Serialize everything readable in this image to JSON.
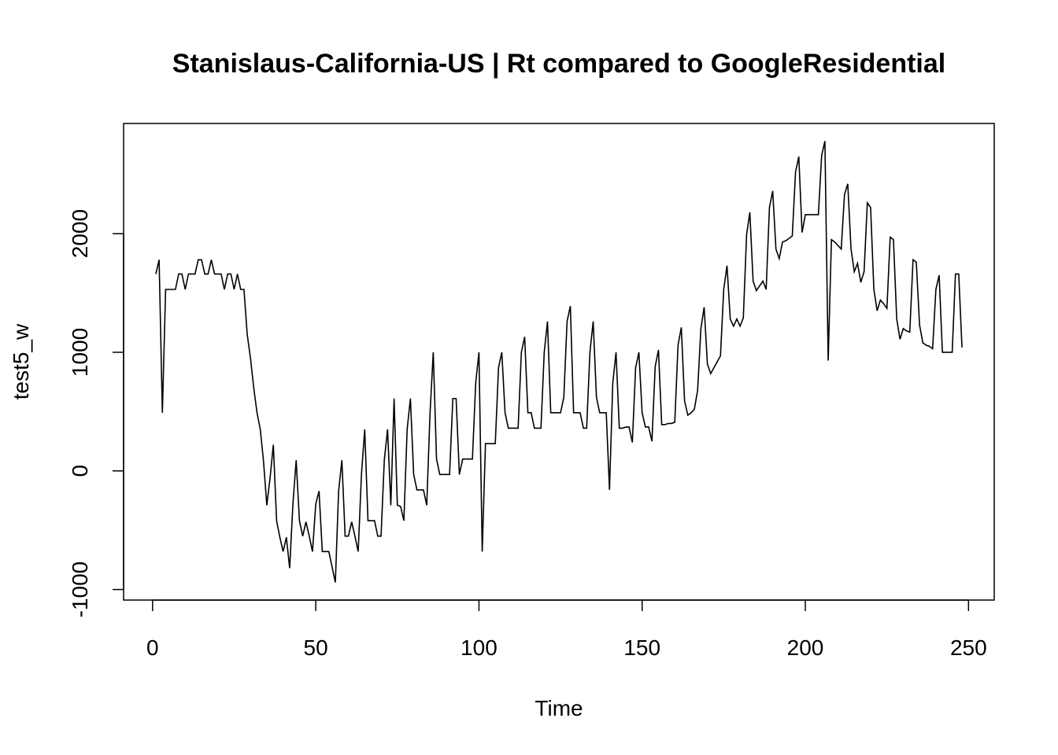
{
  "chart_data": {
    "type": "line",
    "title": "Stanislaus-California-US | Rt compared to GoogleResidential",
    "x_label": "Time",
    "y_label": "test5_w",
    "x": [
      1,
      2,
      3,
      4,
      5,
      6,
      7,
      8,
      9,
      10,
      11,
      12,
      13,
      14,
      15,
      16,
      17,
      18,
      19,
      20,
      21,
      22,
      23,
      24,
      25,
      26,
      27,
      28,
      29,
      30,
      31,
      32,
      33,
      34,
      35,
      36,
      37,
      38,
      39,
      40,
      41,
      42,
      43,
      44,
      45,
      46,
      47,
      48,
      49,
      50,
      51,
      52,
      53,
      54,
      55,
      56,
      57,
      58,
      59,
      60,
      61,
      62,
      63,
      64,
      65,
      66,
      67,
      68,
      69,
      70,
      71,
      72,
      73,
      74,
      75,
      76,
      77,
      78,
      79,
      80,
      81,
      82,
      83,
      84,
      85,
      86,
      87,
      88,
      89,
      90,
      91,
      92,
      93,
      94,
      95,
      96,
      97,
      98,
      99,
      100,
      101,
      102,
      103,
      104,
      105,
      106,
      107,
      108,
      109,
      110,
      111,
      112,
      113,
      114,
      115,
      116,
      117,
      118,
      119,
      120,
      121,
      122,
      123,
      124,
      125,
      126,
      127,
      128,
      129,
      130,
      131,
      132,
      133,
      134,
      135,
      136,
      137,
      138,
      139,
      140,
      141,
      142,
      143,
      144,
      145,
      146,
      147,
      148,
      149,
      150,
      151,
      152,
      153,
      154,
      155,
      156,
      157,
      158,
      159,
      160,
      161,
      162,
      163,
      164,
      165,
      166,
      167,
      168,
      169,
      170,
      171,
      172,
      173,
      174,
      175,
      176,
      177,
      178,
      179,
      180,
      181,
      182,
      183,
      184,
      185,
      186,
      187,
      188,
      189,
      190,
      191,
      192,
      193,
      194,
      195,
      196,
      197,
      198,
      199,
      200,
      201,
      202,
      203,
      204,
      205,
      206,
      207,
      208,
      209,
      210,
      211,
      212,
      213,
      214,
      215,
      216,
      217,
      218,
      219,
      220,
      221,
      222,
      223,
      224,
      225,
      226,
      227,
      228,
      229,
      230,
      231,
      232,
      233,
      234,
      235,
      236,
      237,
      238,
      239,
      240,
      241,
      242,
      243,
      244,
      245,
      246,
      247,
      248
    ],
    "series": [
      {
        "color": "#000000",
        "values": [
          1660,
          1780,
          490,
          1530,
          1530,
          1530,
          1530,
          1660,
          1660,
          1530,
          1660,
          1660,
          1660,
          1780,
          1780,
          1660,
          1660,
          1780,
          1660,
          1660,
          1660,
          1530,
          1660,
          1660,
          1530,
          1660,
          1530,
          1530,
          1150,
          950,
          700,
          490,
          350,
          80,
          -290,
          -60,
          220,
          -420,
          -560,
          -680,
          -560,
          -820,
          -280,
          90,
          -420,
          -550,
          -430,
          -550,
          -680,
          -280,
          -170,
          -680,
          -680,
          -680,
          -810,
          -940,
          -170,
          90,
          -550,
          -550,
          -430,
          -550,
          -680,
          -30,
          350,
          -420,
          -420,
          -420,
          -550,
          -550,
          90,
          350,
          -290,
          610,
          -290,
          -300,
          -420,
          350,
          610,
          -30,
          -160,
          -160,
          -160,
          -290,
          480,
          1000,
          100,
          -30,
          -30,
          -30,
          -30,
          610,
          610,
          -30,
          100,
          100,
          100,
          100,
          740,
          1000,
          -680,
          230,
          230,
          230,
          230,
          870,
          1000,
          490,
          360,
          360,
          360,
          360,
          1000,
          1130,
          490,
          490,
          360,
          360,
          360,
          1000,
          1260,
          490,
          490,
          490,
          490,
          620,
          1260,
          1390,
          490,
          490,
          490,
          360,
          360,
          1000,
          1260,
          620,
          490,
          490,
          490,
          -160,
          740,
          1000,
          360,
          360,
          370,
          370,
          240,
          870,
          1000,
          490,
          370,
          370,
          250,
          880,
          1020,
          390,
          390,
          400,
          400,
          410,
          1060,
          1210,
          590,
          470,
          490,
          520,
          680,
          1200,
          1380,
          900,
          820,
          870,
          920,
          970,
          1530,
          1730,
          1280,
          1220,
          1280,
          1220,
          1290,
          1990,
          2180,
          1600,
          1520,
          1560,
          1600,
          1530,
          2220,
          2360,
          1870,
          1790,
          1930,
          1940,
          1960,
          1980,
          2520,
          2650,
          2010,
          2160,
          2160,
          2160,
          2160,
          2160,
          2660,
          2780,
          930,
          1950,
          1930,
          1900,
          1870,
          2330,
          2420,
          1870,
          1680,
          1750,
          1590,
          1680,
          2260,
          2220,
          1530,
          1350,
          1440,
          1410,
          1370,
          1970,
          1950,
          1280,
          1110,
          1200,
          1180,
          1170,
          1780,
          1760,
          1230,
          1080,
          1060,
          1050,
          1030,
          1530,
          1650,
          1000,
          1000,
          1000,
          1000,
          1660,
          1660,
          1040
        ]
      }
    ],
    "xlim": [
      -8.88,
      257.88
    ],
    "ylim": [
      -1089,
      2929
    ],
    "xticks": [
      0,
      50,
      100,
      150,
      200,
      250
    ],
    "yticks": [
      -1000,
      0,
      1000,
      2000
    ]
  }
}
